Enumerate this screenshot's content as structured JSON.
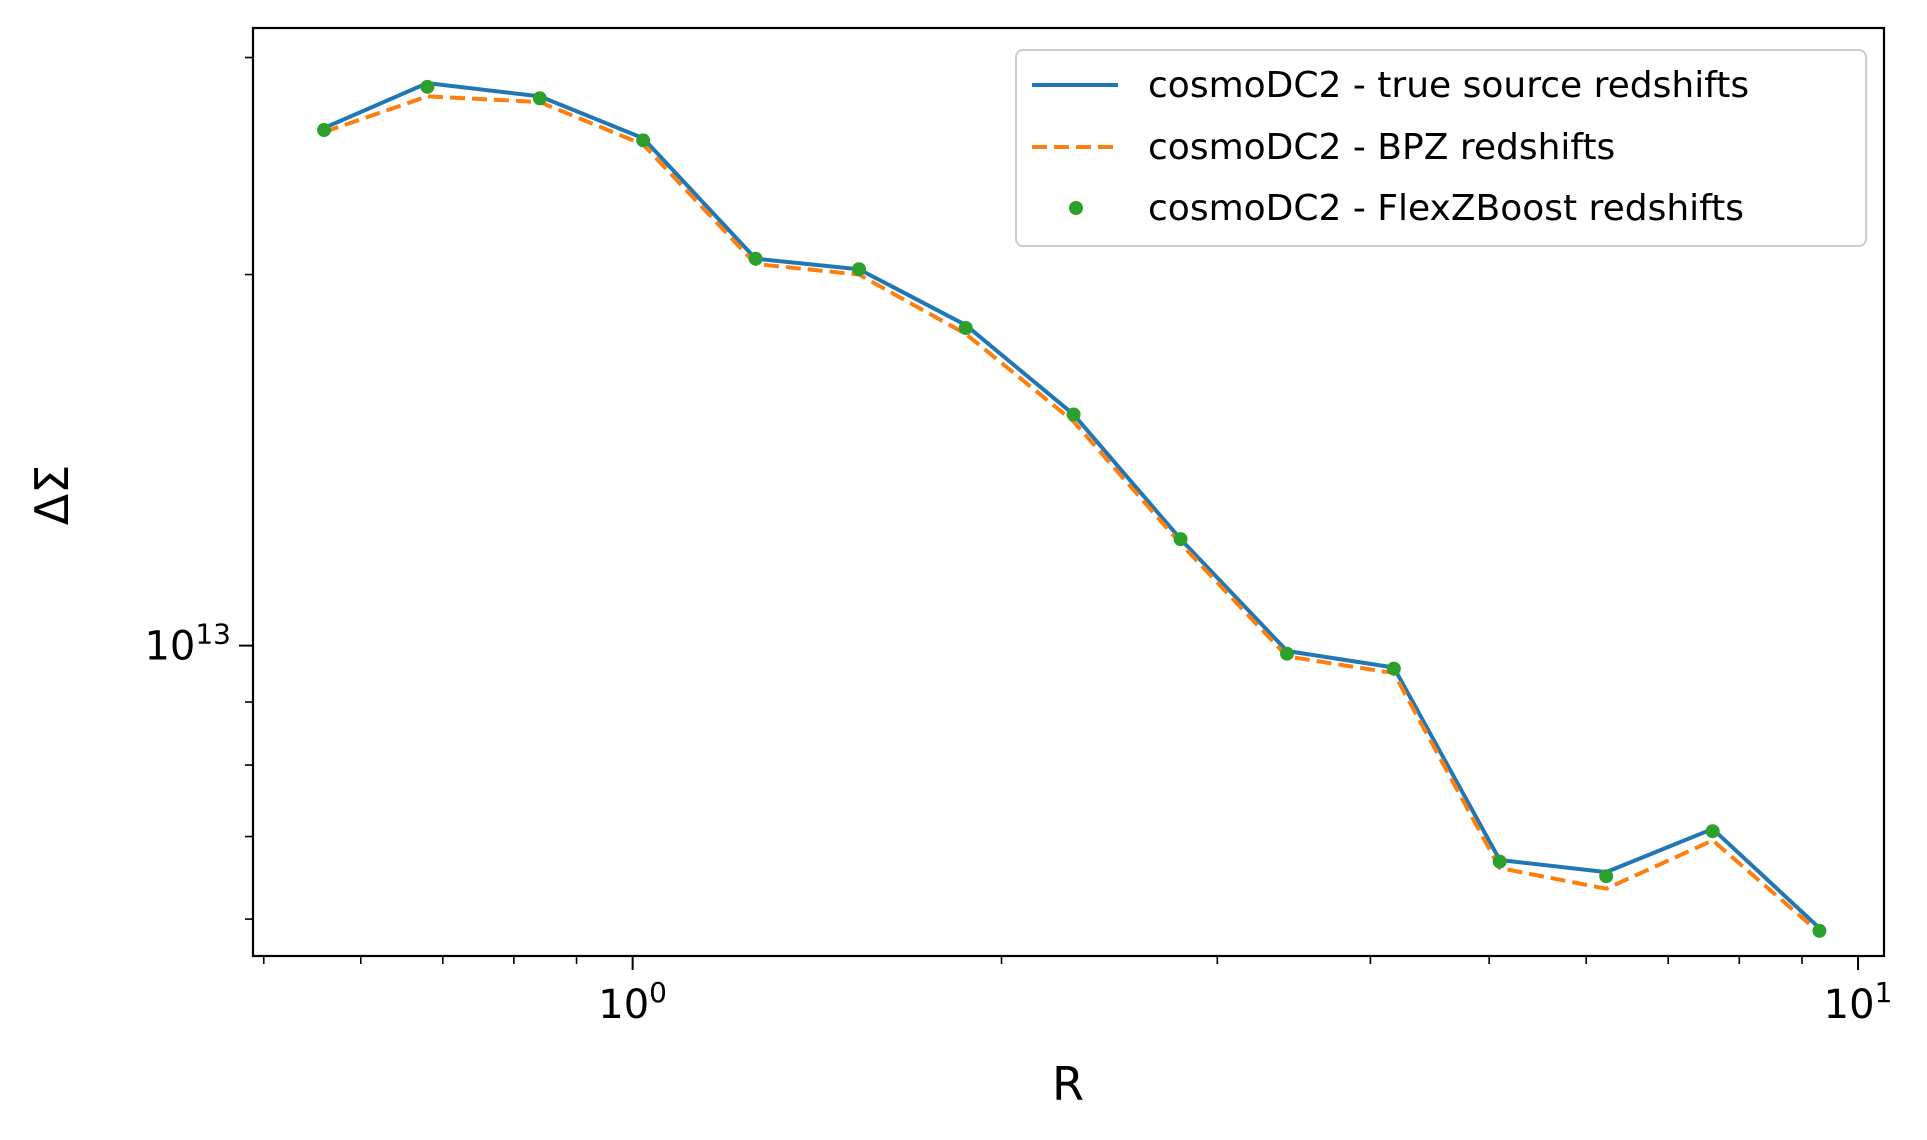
{
  "chart_data": {
    "type": "line",
    "xscale": "log",
    "yscale": "log",
    "xlabel": "R",
    "ylabel": "ΔΣ",
    "xlim": [
      0.49,
      10.5
    ],
    "ylim": [
      5600000000000.0,
      31700000000000.0
    ],
    "xticks": [
      {
        "value": 1,
        "base": "10",
        "exp": "0"
      },
      {
        "value": 10,
        "base": "10",
        "exp": "1"
      }
    ],
    "yticks": [
      {
        "value": 10000000000000.0,
        "base": "10",
        "exp": "13"
      }
    ],
    "legend_position": "upper right",
    "x": [
      0.56,
      0.68,
      0.84,
      1.02,
      1.26,
      1.53,
      1.87,
      2.29,
      2.8,
      3.42,
      4.18,
      5.1,
      6.23,
      7.61,
      9.3
    ],
    "series": [
      {
        "name": "cosmoDC2 - true source redshifts",
        "style": "solid",
        "color": "#1f77b4",
        "values": [
          26300000000000.0,
          28600000000000.0,
          27900000000000.0,
          25800000000000.0,
          20600000000000.0,
          20200000000000.0,
          18200000000000.0,
          15400000000000.0,
          12200000000000.0,
          9900000000000.0,
          9600000000000.0,
          6700000000000.0,
          6550000000000.0,
          7100000000000.0,
          5900000000000.0
        ]
      },
      {
        "name": "cosmoDC2 - BPZ redshifts",
        "style": "dashed",
        "color": "#ff7f0e",
        "values": [
          26100000000000.0,
          27900000000000.0,
          27600000000000.0,
          25500000000000.0,
          20400000000000.0,
          20000000000000.0,
          17900000000000.0,
          15200000000000.0,
          12100000000000.0,
          9800000000000.0,
          9500000000000.0,
          6600000000000.0,
          6350000000000.0,
          6950000000000.0,
          5850000000000.0
        ]
      },
      {
        "name": "cosmoDC2 - FlexZBoost redshifts",
        "style": "points",
        "color": "#2ca02c",
        "values": [
          26200000000000.0,
          28400000000000.0,
          27800000000000.0,
          25700000000000.0,
          20600000000000.0,
          20200000000000.0,
          18100000000000.0,
          15400000000000.0,
          12200000000000.0,
          9850000000000.0,
          9580000000000.0,
          6680000000000.0,
          6500000000000.0,
          7070000000000.0,
          5870000000000.0
        ]
      }
    ]
  }
}
